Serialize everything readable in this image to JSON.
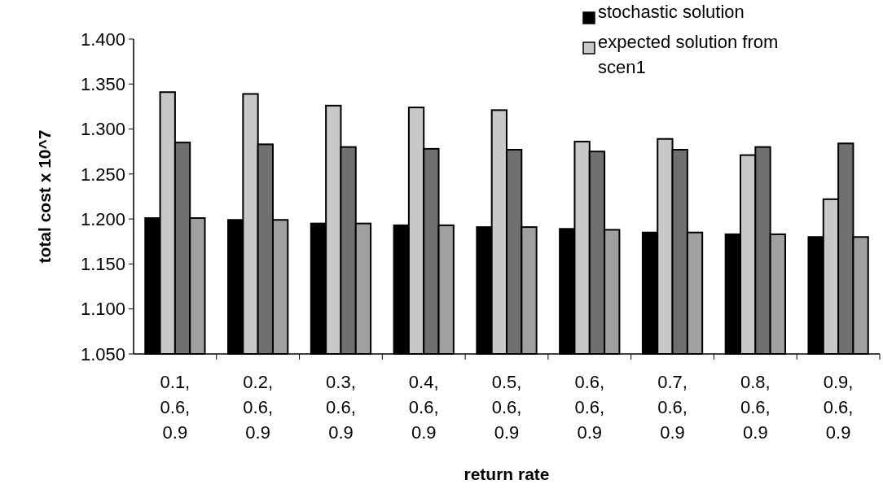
{
  "chart_data": {
    "type": "bar",
    "xlabel": "return rate",
    "ylabel": "total cost x 10^7",
    "categories": [
      "0.1, 0.6, 0.9",
      "0.2, 0.6, 0.9",
      "0.3, 0.6, 0.9",
      "0.4, 0.6, 0.9",
      "0.5, 0.6, 0.9",
      "0.6, 0.6, 0.9",
      "0.7, 0.6, 0.9",
      "0.8, 0.6, 0.9",
      "0.9, 0.6, 0.9"
    ],
    "series": [
      {
        "name": "stochastic solution",
        "color": "#000000",
        "values": [
          1.201,
          1.199,
          1.195,
          1.193,
          1.191,
          1.189,
          1.185,
          1.183,
          1.18
        ]
      },
      {
        "name": "expected solution from scen1",
        "color": "#c8c8c8",
        "values": [
          1.341,
          1.339,
          1.326,
          1.324,
          1.321,
          1.286,
          1.289,
          1.271,
          1.222
        ]
      },
      {
        "color": "#707070",
        "values": [
          1.285,
          1.283,
          1.28,
          1.278,
          1.277,
          1.275,
          1.277,
          1.28,
          1.284
        ]
      },
      {
        "color": "#a0a0a0",
        "values": [
          1.201,
          1.199,
          1.195,
          1.193,
          1.191,
          1.188,
          1.185,
          1.183,
          1.18
        ]
      }
    ],
    "ylim": [
      1.05,
      1.4
    ],
    "yticks": [
      {
        "value": 1.05,
        "label": "1.050"
      },
      {
        "value": 1.1,
        "label": "1.100"
      },
      {
        "value": 1.15,
        "label": "1.150"
      },
      {
        "value": 1.2,
        "label": "1.200"
      },
      {
        "value": 1.25,
        "label": "1.250"
      },
      {
        "value": 1.3,
        "label": "1.300"
      },
      {
        "value": 1.35,
        "label": "1.350"
      },
      {
        "value": 1.4,
        "label": "1.400"
      }
    ],
    "grid": false,
    "legend": "top right"
  }
}
